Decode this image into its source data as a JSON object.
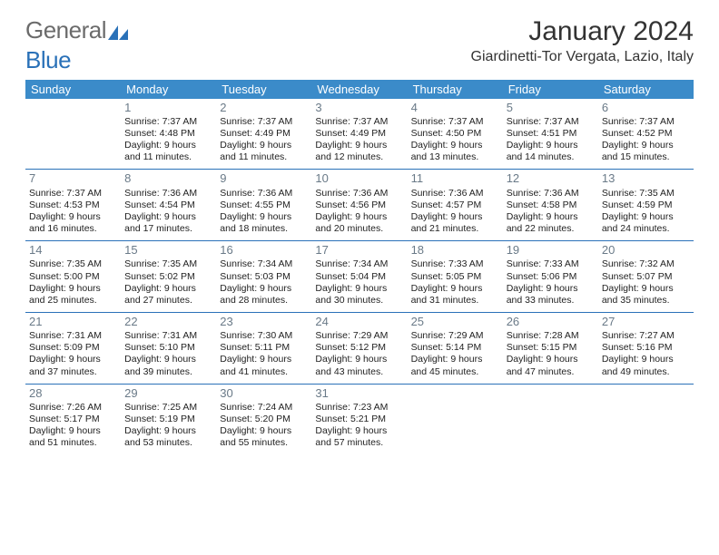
{
  "brand": {
    "gray": "General",
    "blue": "Blue"
  },
  "title": "January 2024",
  "location": "Giardinetti-Tor Vergata, Lazio, Italy",
  "styling": {
    "header_bg": "#3b8bc9",
    "header_text": "#ffffff",
    "accent_line": "#2a71b8",
    "daynum_color": "#6a7a88",
    "body_text": "#222222",
    "page_bg": "#ffffff",
    "logo_gray": "#6b6b6b",
    "logo_blue": "#2a71b8",
    "month_fontsize_pt": 22,
    "location_fontsize_pt": 12,
    "header_fontsize_pt": 10,
    "cell_fontsize_pt": 8,
    "font_family": "Arial"
  },
  "weekdays": [
    "Sunday",
    "Monday",
    "Tuesday",
    "Wednesday",
    "Thursday",
    "Friday",
    "Saturday"
  ],
  "weeks": [
    [
      null,
      {
        "n": "1",
        "sr": "Sunrise: 7:37 AM",
        "ss": "Sunset: 4:48 PM",
        "d1": "Daylight: 9 hours",
        "d2": "and 11 minutes."
      },
      {
        "n": "2",
        "sr": "Sunrise: 7:37 AM",
        "ss": "Sunset: 4:49 PM",
        "d1": "Daylight: 9 hours",
        "d2": "and 11 minutes."
      },
      {
        "n": "3",
        "sr": "Sunrise: 7:37 AM",
        "ss": "Sunset: 4:49 PM",
        "d1": "Daylight: 9 hours",
        "d2": "and 12 minutes."
      },
      {
        "n": "4",
        "sr": "Sunrise: 7:37 AM",
        "ss": "Sunset: 4:50 PM",
        "d1": "Daylight: 9 hours",
        "d2": "and 13 minutes."
      },
      {
        "n": "5",
        "sr": "Sunrise: 7:37 AM",
        "ss": "Sunset: 4:51 PM",
        "d1": "Daylight: 9 hours",
        "d2": "and 14 minutes."
      },
      {
        "n": "6",
        "sr": "Sunrise: 7:37 AM",
        "ss": "Sunset: 4:52 PM",
        "d1": "Daylight: 9 hours",
        "d2": "and 15 minutes."
      }
    ],
    [
      {
        "n": "7",
        "sr": "Sunrise: 7:37 AM",
        "ss": "Sunset: 4:53 PM",
        "d1": "Daylight: 9 hours",
        "d2": "and 16 minutes."
      },
      {
        "n": "8",
        "sr": "Sunrise: 7:36 AM",
        "ss": "Sunset: 4:54 PM",
        "d1": "Daylight: 9 hours",
        "d2": "and 17 minutes."
      },
      {
        "n": "9",
        "sr": "Sunrise: 7:36 AM",
        "ss": "Sunset: 4:55 PM",
        "d1": "Daylight: 9 hours",
        "d2": "and 18 minutes."
      },
      {
        "n": "10",
        "sr": "Sunrise: 7:36 AM",
        "ss": "Sunset: 4:56 PM",
        "d1": "Daylight: 9 hours",
        "d2": "and 20 minutes."
      },
      {
        "n": "11",
        "sr": "Sunrise: 7:36 AM",
        "ss": "Sunset: 4:57 PM",
        "d1": "Daylight: 9 hours",
        "d2": "and 21 minutes."
      },
      {
        "n": "12",
        "sr": "Sunrise: 7:36 AM",
        "ss": "Sunset: 4:58 PM",
        "d1": "Daylight: 9 hours",
        "d2": "and 22 minutes."
      },
      {
        "n": "13",
        "sr": "Sunrise: 7:35 AM",
        "ss": "Sunset: 4:59 PM",
        "d1": "Daylight: 9 hours",
        "d2": "and 24 minutes."
      }
    ],
    [
      {
        "n": "14",
        "sr": "Sunrise: 7:35 AM",
        "ss": "Sunset: 5:00 PM",
        "d1": "Daylight: 9 hours",
        "d2": "and 25 minutes."
      },
      {
        "n": "15",
        "sr": "Sunrise: 7:35 AM",
        "ss": "Sunset: 5:02 PM",
        "d1": "Daylight: 9 hours",
        "d2": "and 27 minutes."
      },
      {
        "n": "16",
        "sr": "Sunrise: 7:34 AM",
        "ss": "Sunset: 5:03 PM",
        "d1": "Daylight: 9 hours",
        "d2": "and 28 minutes."
      },
      {
        "n": "17",
        "sr": "Sunrise: 7:34 AM",
        "ss": "Sunset: 5:04 PM",
        "d1": "Daylight: 9 hours",
        "d2": "and 30 minutes."
      },
      {
        "n": "18",
        "sr": "Sunrise: 7:33 AM",
        "ss": "Sunset: 5:05 PM",
        "d1": "Daylight: 9 hours",
        "d2": "and 31 minutes."
      },
      {
        "n": "19",
        "sr": "Sunrise: 7:33 AM",
        "ss": "Sunset: 5:06 PM",
        "d1": "Daylight: 9 hours",
        "d2": "and 33 minutes."
      },
      {
        "n": "20",
        "sr": "Sunrise: 7:32 AM",
        "ss": "Sunset: 5:07 PM",
        "d1": "Daylight: 9 hours",
        "d2": "and 35 minutes."
      }
    ],
    [
      {
        "n": "21",
        "sr": "Sunrise: 7:31 AM",
        "ss": "Sunset: 5:09 PM",
        "d1": "Daylight: 9 hours",
        "d2": "and 37 minutes."
      },
      {
        "n": "22",
        "sr": "Sunrise: 7:31 AM",
        "ss": "Sunset: 5:10 PM",
        "d1": "Daylight: 9 hours",
        "d2": "and 39 minutes."
      },
      {
        "n": "23",
        "sr": "Sunrise: 7:30 AM",
        "ss": "Sunset: 5:11 PM",
        "d1": "Daylight: 9 hours",
        "d2": "and 41 minutes."
      },
      {
        "n": "24",
        "sr": "Sunrise: 7:29 AM",
        "ss": "Sunset: 5:12 PM",
        "d1": "Daylight: 9 hours",
        "d2": "and 43 minutes."
      },
      {
        "n": "25",
        "sr": "Sunrise: 7:29 AM",
        "ss": "Sunset: 5:14 PM",
        "d1": "Daylight: 9 hours",
        "d2": "and 45 minutes."
      },
      {
        "n": "26",
        "sr": "Sunrise: 7:28 AM",
        "ss": "Sunset: 5:15 PM",
        "d1": "Daylight: 9 hours",
        "d2": "and 47 minutes."
      },
      {
        "n": "27",
        "sr": "Sunrise: 7:27 AM",
        "ss": "Sunset: 5:16 PM",
        "d1": "Daylight: 9 hours",
        "d2": "and 49 minutes."
      }
    ],
    [
      {
        "n": "28",
        "sr": "Sunrise: 7:26 AM",
        "ss": "Sunset: 5:17 PM",
        "d1": "Daylight: 9 hours",
        "d2": "and 51 minutes."
      },
      {
        "n": "29",
        "sr": "Sunrise: 7:25 AM",
        "ss": "Sunset: 5:19 PM",
        "d1": "Daylight: 9 hours",
        "d2": "and 53 minutes."
      },
      {
        "n": "30",
        "sr": "Sunrise: 7:24 AM",
        "ss": "Sunset: 5:20 PM",
        "d1": "Daylight: 9 hours",
        "d2": "and 55 minutes."
      },
      {
        "n": "31",
        "sr": "Sunrise: 7:23 AM",
        "ss": "Sunset: 5:21 PM",
        "d1": "Daylight: 9 hours",
        "d2": "and 57 minutes."
      },
      null,
      null,
      null
    ]
  ]
}
